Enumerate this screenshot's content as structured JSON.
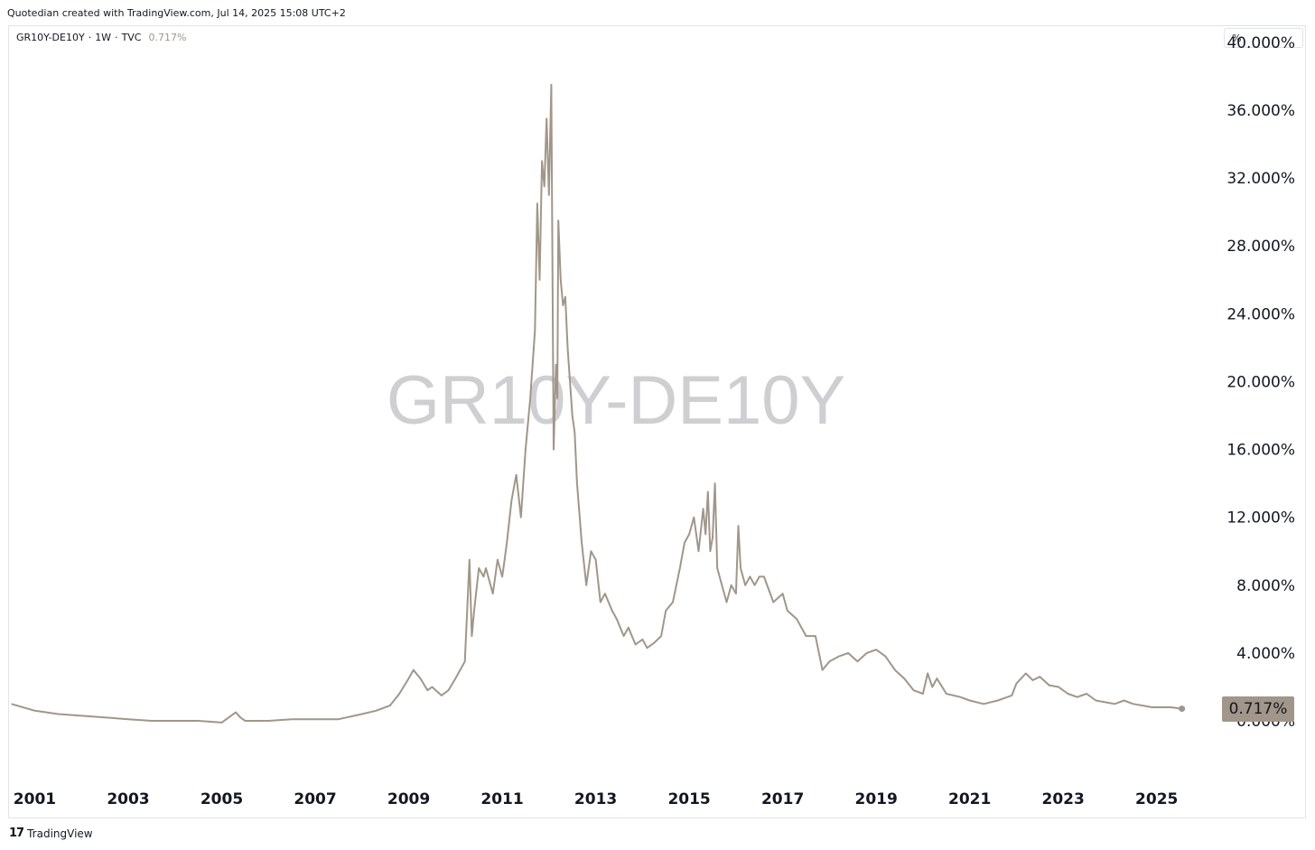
{
  "header": {
    "caption": "Quotedian created with TradingView.com, Jul 14, 2025 15:08 UTC+2"
  },
  "legend": {
    "symbol": "GR10Y-DE10Y",
    "interval": "1W",
    "source": "TVC",
    "last_value": "0.717%"
  },
  "unit_selector": {
    "label": "%"
  },
  "watermark": {
    "text": "GR10Y-DE10Y"
  },
  "footer": {
    "brand": "TradingView",
    "logo_glyph": "17"
  },
  "colors": {
    "series_line": "#a19689",
    "price_label_bg": "#a19689",
    "watermark": "#cfcfd3"
  },
  "chart_data": {
    "type": "line",
    "title": "GR10Y-DE10Y",
    "yticks": [
      "0.000%",
      "4.000%",
      "8.000%",
      "12.000%",
      "16.000%",
      "20.000%",
      "24.000%",
      "28.000%",
      "32.000%",
      "36.000%",
      "40.000%"
    ],
    "ytick_values": [
      0,
      4,
      8,
      12,
      16,
      20,
      24,
      28,
      32,
      36,
      40
    ],
    "xticks": [
      "2001",
      "2003",
      "2005",
      "2007",
      "2009",
      "2011",
      "2013",
      "2015",
      "2017",
      "2019",
      "2021",
      "2023",
      "2025"
    ],
    "xtick_values": [
      2001,
      2003,
      2005,
      2007,
      2009,
      2011,
      2013,
      2015,
      2017,
      2019,
      2021,
      2023,
      2025
    ],
    "ylim": [
      -3.3,
      40.9
    ],
    "xlim": [
      2000.45,
      2026.3
    ],
    "last_value": 0.717,
    "series": [
      {
        "x": [
          2000.5,
          2001.0,
          2001.5,
          2002.0,
          2002.5,
          2003.0,
          2003.5,
          2004.0,
          2004.5,
          2005.0,
          2005.3,
          2005.4,
          2005.5,
          2006.0,
          2006.5,
          2007.0,
          2007.5,
          2008.0,
          2008.3,
          2008.6,
          2008.8,
          2009.0,
          2009.1,
          2009.25,
          2009.4,
          2009.5,
          2009.7,
          2009.85,
          2010.0,
          2010.2,
          2010.3,
          2010.35,
          2010.4,
          2010.5,
          2010.6,
          2010.65,
          2010.8,
          2010.9,
          2011.0,
          2011.05,
          2011.1,
          2011.2,
          2011.3,
          2011.4,
          2011.5,
          2011.55,
          2011.6,
          2011.7,
          2011.75,
          2011.8,
          2011.85,
          2011.9,
          2011.95,
          2012.0,
          2012.05,
          2012.1,
          2012.15,
          2012.18,
          2012.2,
          2012.25,
          2012.3,
          2012.35,
          2012.4,
          2012.45,
          2012.5,
          2012.55,
          2012.6,
          2012.7,
          2012.8,
          2012.9,
          2013.0,
          2013.1,
          2013.2,
          2013.35,
          2013.45,
          2013.6,
          2013.7,
          2013.85,
          2014.0,
          2014.1,
          2014.25,
          2014.4,
          2014.5,
          2014.65,
          2014.8,
          2014.9,
          2015.0,
          2015.1,
          2015.2,
          2015.3,
          2015.35,
          2015.4,
          2015.45,
          2015.5,
          2015.55,
          2015.6,
          2015.7,
          2015.8,
          2015.9,
          2016.0,
          2016.05,
          2016.1,
          2016.2,
          2016.3,
          2016.4,
          2016.5,
          2016.6,
          2016.8,
          2017.0,
          2017.1,
          2017.3,
          2017.5,
          2017.7,
          2017.85,
          2018.0,
          2018.2,
          2018.4,
          2018.6,
          2018.8,
          2019.0,
          2019.2,
          2019.4,
          2019.6,
          2019.8,
          2020.0,
          2020.1,
          2020.2,
          2020.3,
          2020.5,
          2020.8,
          2021.0,
          2021.3,
          2021.6,
          2021.9,
          2022.0,
          2022.2,
          2022.35,
          2022.5,
          2022.7,
          2022.9,
          2023.1,
          2023.3,
          2023.5,
          2023.7,
          2023.9,
          2024.1,
          2024.3,
          2024.5,
          2024.7,
          2024.9,
          2025.1,
          2025.3,
          2025.54
        ],
        "y": [
          1.0,
          0.6,
          0.4,
          0.3,
          0.2,
          0.1,
          0.0,
          0.0,
          0.0,
          -0.1,
          0.5,
          0.2,
          0.0,
          0.0,
          0.1,
          0.1,
          0.1,
          0.4,
          0.6,
          0.9,
          1.6,
          2.5,
          3.0,
          2.5,
          1.8,
          2.0,
          1.5,
          1.8,
          2.5,
          3.5,
          9.5,
          5.0,
          6.5,
          9.0,
          8.5,
          9.0,
          7.5,
          9.5,
          8.5,
          9.5,
          10.5,
          13.0,
          14.5,
          12.0,
          16.0,
          17.5,
          19.0,
          23.0,
          30.5,
          26.0,
          33.0,
          31.5,
          35.5,
          31.0,
          37.5,
          16.0,
          21.0,
          19.0,
          29.5,
          26.0,
          24.5,
          25.0,
          22.0,
          20.0,
          18.0,
          17.0,
          14.0,
          10.5,
          8.0,
          10.0,
          9.5,
          7.0,
          7.5,
          6.5,
          6.0,
          5.0,
          5.5,
          4.5,
          4.8,
          4.3,
          4.6,
          5.0,
          6.5,
          7.0,
          9.0,
          10.5,
          11.0,
          12.0,
          10.0,
          12.5,
          11.0,
          13.5,
          10.0,
          10.8,
          14.0,
          9.0,
          8.0,
          7.0,
          8.0,
          7.5,
          11.5,
          9.0,
          8.0,
          8.5,
          8.0,
          8.5,
          8.5,
          7.0,
          7.5,
          6.5,
          6.0,
          5.0,
          5.0,
          3.0,
          3.5,
          3.8,
          4.0,
          3.5,
          4.0,
          4.2,
          3.8,
          3.0,
          2.5,
          1.8,
          1.6,
          2.8,
          2.0,
          2.5,
          1.6,
          1.4,
          1.2,
          1.0,
          1.2,
          1.5,
          2.2,
          2.8,
          2.4,
          2.6,
          2.1,
          2.0,
          1.6,
          1.4,
          1.6,
          1.2,
          1.1,
          1.0,
          1.2,
          1.0,
          0.9,
          0.8,
          0.8,
          0.8,
          0.717
        ]
      }
    ]
  }
}
